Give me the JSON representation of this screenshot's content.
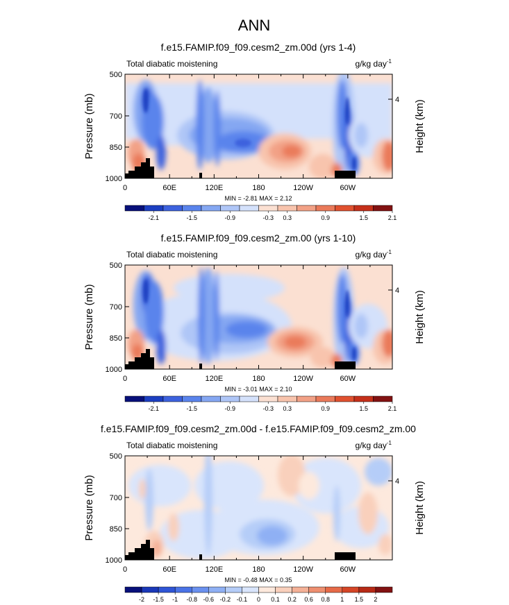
{
  "figure": {
    "title": "ANN"
  },
  "colors": {
    "palette_14": [
      "#08107a",
      "#1c3fc1",
      "#3d62de",
      "#5a84ec",
      "#85a7f2",
      "#afc6f7",
      "#d4e1fb",
      "#fbe0d2",
      "#f8c4ad",
      "#f2a186",
      "#ea7a5a",
      "#e0512f",
      "#c5301a",
      "#821212"
    ],
    "palette_16": [
      "#08107a",
      "#1a38b8",
      "#2f55d6",
      "#4a73e6",
      "#6a91ef",
      "#8fb0f4",
      "#b5cdf8",
      "#d9e5fc",
      "#fde9dd",
      "#f9d0bc",
      "#f4b197",
      "#ee8f70",
      "#e66a48",
      "#d54627",
      "#b72a16",
      "#821212"
    ],
    "land": "#000000"
  },
  "chart_data": [
    {
      "type": "contour",
      "title": "f.e15.FAMIP.f09_f09.cesm2_zm.00d (yrs 1-4)",
      "left_label": "Total diabatic moistening",
      "units_base": "g/kg day",
      "units_exp": "-1",
      "ylabel": "Pressure (mb)",
      "y2label": "Height (km)",
      "y_ticks": [
        "500",
        "700",
        "850",
        "1000"
      ],
      "y_tick_values": [
        500,
        700,
        850,
        1000
      ],
      "y2_ticks": [
        "4"
      ],
      "x_ticks": [
        "0",
        "60E",
        "120E",
        "180",
        "120W",
        "60W"
      ],
      "x_tick_values": [
        0,
        60,
        120,
        180,
        240,
        300
      ],
      "xlim": [
        0,
        360
      ],
      "ylim": [
        1000,
        500
      ],
      "min_max": "MIN = -2.81  MAX =  2.12",
      "colorbar_labels": [
        "-2.1",
        "-1.5",
        "-0.9",
        "-0.3",
        "0.3",
        "0.9",
        "1.5",
        "2.1"
      ],
      "contour_levels": [
        -2.4,
        -2.1,
        -1.8,
        -1.5,
        -1.2,
        -0.9,
        -0.6,
        -0.3,
        0.3,
        0.6,
        0.9,
        1.2,
        1.5,
        1.8,
        2.1,
        2.4
      ],
      "features": [
        {
          "name": "negative",
          "lon": 30,
          "p": 700,
          "value": -2.4
        },
        {
          "name": "negative",
          "lon": 100,
          "p": 800,
          "value": -1.2
        },
        {
          "name": "negative",
          "lon": 140,
          "p": 810,
          "value": -1.6
        },
        {
          "name": "negative",
          "lon": 300,
          "p": 800,
          "value": -2.0
        },
        {
          "name": "positive",
          "lon": 210,
          "p": 870,
          "value": 1.3
        },
        {
          "name": "positive",
          "lon": 350,
          "p": 880,
          "value": 1.4
        }
      ]
    },
    {
      "type": "contour",
      "title": "f.e15.FAMIP.f09_f09.cesm2_zm.00 (yrs 1-10)",
      "left_label": "Total diabatic moistening",
      "units_base": "g/kg day",
      "units_exp": "-1",
      "ylabel": "Pressure (mb)",
      "y2label": "Height (km)",
      "y_ticks": [
        "500",
        "700",
        "850",
        "1000"
      ],
      "y_tick_values": [
        500,
        700,
        850,
        1000
      ],
      "y2_ticks": [
        "4"
      ],
      "x_ticks": [
        "0",
        "60E",
        "120E",
        "180",
        "120W",
        "60W"
      ],
      "x_tick_values": [
        0,
        60,
        120,
        180,
        240,
        300
      ],
      "xlim": [
        0,
        360
      ],
      "ylim": [
        1000,
        500
      ],
      "min_max": "MIN = -3.01  MAX =  2.10",
      "colorbar_labels": [
        "-2.1",
        "-1.5",
        "-0.9",
        "-0.3",
        "0.3",
        "0.9",
        "1.5",
        "2.1"
      ],
      "contour_levels": [
        -2.4,
        -2.1,
        -1.8,
        -1.5,
        -1.2,
        -0.9,
        -0.6,
        -0.3,
        0.3,
        0.6,
        0.9,
        1.2,
        1.5,
        1.8,
        2.1,
        2.4
      ],
      "features": [
        {
          "name": "negative",
          "lon": 30,
          "p": 700,
          "value": -2.4
        },
        {
          "name": "negative",
          "lon": 100,
          "p": 820,
          "value": -1.2
        },
        {
          "name": "negative",
          "lon": 150,
          "p": 830,
          "value": -1.6
        },
        {
          "name": "negative",
          "lon": 300,
          "p": 800,
          "value": -2.0
        },
        {
          "name": "positive",
          "lon": 215,
          "p": 880,
          "value": 1.4
        },
        {
          "name": "positive",
          "lon": 350,
          "p": 880,
          "value": 1.4
        }
      ]
    },
    {
      "type": "contour",
      "title": "f.e15.FAMIP.f09_f09.cesm2_zm.00d - f.e15.FAMIP.f09_f09.cesm2_zm.00",
      "left_label": "Total diabatic moistening",
      "units_base": "g/kg day",
      "units_exp": "-1",
      "ylabel": "Pressure (mb)",
      "y2label": "Height (km)",
      "y_ticks": [
        "500",
        "700",
        "850",
        "1000"
      ],
      "y_tick_values": [
        500,
        700,
        850,
        1000
      ],
      "y2_ticks": [
        "4"
      ],
      "x_ticks": [
        "0",
        "60E",
        "120E",
        "180",
        "120W",
        "60W"
      ],
      "x_tick_values": [
        0,
        60,
        120,
        180,
        240,
        300
      ],
      "xlim": [
        0,
        360
      ],
      "ylim": [
        1000,
        500
      ],
      "min_max": "MIN = -0.48  MAX =  0.35",
      "colorbar_labels": [
        "-2",
        "-1.5",
        "-1",
        "-0.8",
        "-0.6",
        "-0.2",
        "-0.1",
        "0",
        "0.1",
        "0.2",
        "0.6",
        "0.8",
        "1",
        "1.5",
        "2"
      ],
      "contour_levels": [
        -2,
        -1.5,
        -1,
        -0.8,
        -0.6,
        -0.2,
        -0.1,
        0,
        0.1,
        0.2,
        0.6,
        0.8,
        1,
        1.5,
        2
      ],
      "features": [
        {
          "name": "negative",
          "lon": 150,
          "p": 820,
          "value": -0.3
        },
        {
          "name": "negative",
          "lon": 115,
          "p": 700,
          "value": -0.3
        },
        {
          "name": "positive",
          "lon": 35,
          "p": 920,
          "value": 0.3
        },
        {
          "name": "positive",
          "lon": 250,
          "p": 680,
          "value": 0.15
        }
      ]
    }
  ]
}
